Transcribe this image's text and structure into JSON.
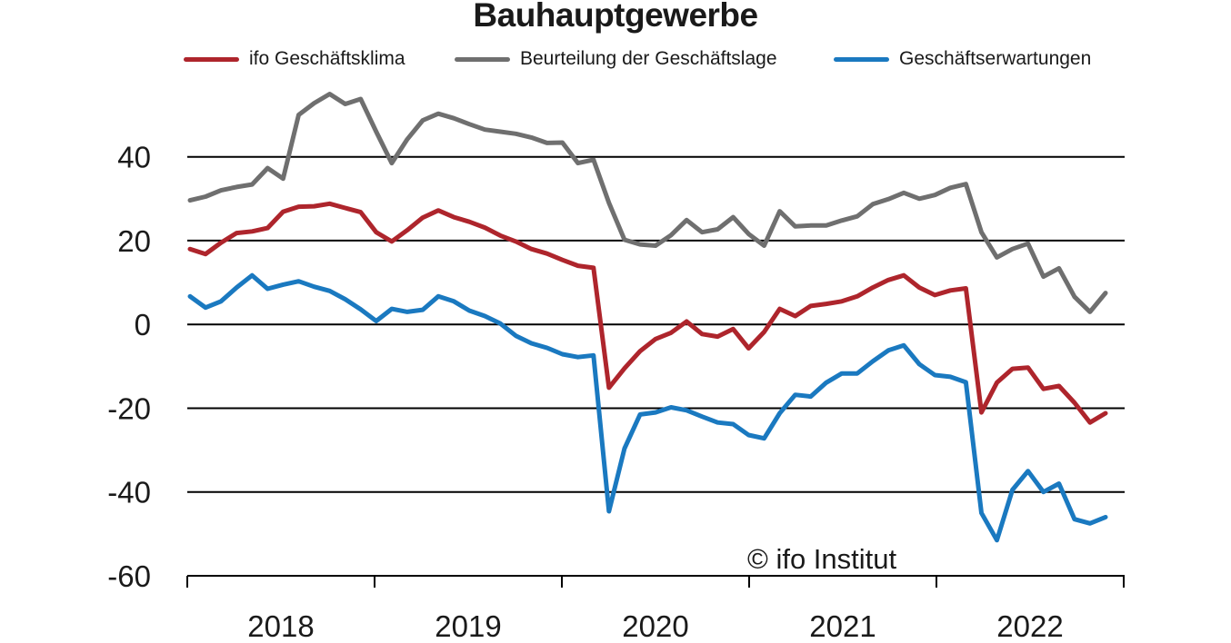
{
  "chart_data": {
    "type": "line",
    "title": "Bauhauptgewerbe",
    "watermark": "© ifo Institut",
    "xlabel": "",
    "ylabel": "",
    "ylim": [
      -60,
      60
    ],
    "yticks": [
      40,
      20,
      0,
      -20,
      -40,
      -60
    ],
    "grid": true,
    "legend_position": "top",
    "x_tick_year_labels": [
      "2018",
      "2019",
      "2020",
      "2021",
      "2022"
    ],
    "x": [
      "2018-01",
      "2018-02",
      "2018-03",
      "2018-04",
      "2018-05",
      "2018-06",
      "2018-07",
      "2018-08",
      "2018-09",
      "2018-10",
      "2018-11",
      "2018-12",
      "2019-01",
      "2019-02",
      "2019-03",
      "2019-04",
      "2019-05",
      "2019-06",
      "2019-07",
      "2019-08",
      "2019-09",
      "2019-10",
      "2019-11",
      "2019-12",
      "2020-01",
      "2020-02",
      "2020-03",
      "2020-04",
      "2020-05",
      "2020-06",
      "2020-07",
      "2020-08",
      "2020-09",
      "2020-10",
      "2020-11",
      "2020-12",
      "2021-01",
      "2021-02",
      "2021-03",
      "2021-04",
      "2021-05",
      "2021-06",
      "2021-07",
      "2021-08",
      "2021-09",
      "2021-10",
      "2021-11",
      "2021-12",
      "2022-01",
      "2022-02",
      "2022-03",
      "2022-04",
      "2022-05",
      "2022-06",
      "2022-07",
      "2022-08",
      "2022-09",
      "2022-10",
      "2022-11",
      "2022-12"
    ],
    "series": [
      {
        "name": "ifo Geschäftsklima",
        "color": "#ae252c",
        "values": [
          18.0,
          16.8,
          19.5,
          21.8,
          22.2,
          23.0,
          26.9,
          28.1,
          28.2,
          28.8,
          27.8,
          26.8,
          22.0,
          19.8,
          22.5,
          25.5,
          27.2,
          25.6,
          24.5,
          23.1,
          21.2,
          19.8,
          18.0,
          16.9,
          15.4,
          14.0,
          13.5,
          -15.1,
          -10.5,
          -6.4,
          -3.5,
          -2.0,
          0.7,
          -2.3,
          -2.9,
          -1.1,
          -5.7,
          -1.8,
          3.7,
          2.0,
          4.4,
          4.9,
          5.5,
          6.7,
          8.8,
          10.6,
          11.7,
          8.8,
          7.0,
          8.1,
          8.6,
          -21.0,
          -13.9,
          -10.6,
          -10.3,
          -15.4,
          -14.7,
          -18.7,
          -23.4,
          -21.2
        ]
      },
      {
        "name": "Beurteilung der Geschäftslage",
        "color": "#6f6f6f",
        "values": [
          29.6,
          30.5,
          32.0,
          32.8,
          33.4,
          37.3,
          34.8,
          50.0,
          52.8,
          55.0,
          52.6,
          53.8,
          46.0,
          38.5,
          44.2,
          48.7,
          50.3,
          49.2,
          47.8,
          46.5,
          46.0,
          45.5,
          44.6,
          43.3,
          43.4,
          38.5,
          39.3,
          29.0,
          20.2,
          19.1,
          18.8,
          21.3,
          24.9,
          22.0,
          22.7,
          25.6,
          21.6,
          18.8,
          27.0,
          23.4,
          23.6,
          23.6,
          24.8,
          25.8,
          28.7,
          29.9,
          31.4,
          30.0,
          30.9,
          32.6,
          33.5,
          22.0,
          16.0,
          18.0,
          19.3,
          11.4,
          13.4,
          6.6,
          3.0,
          7.5
        ]
      },
      {
        "name": "Geschäftserwartungen",
        "color": "#1a79c0",
        "values": [
          6.7,
          4.0,
          5.5,
          8.8,
          11.7,
          8.5,
          9.5,
          10.3,
          9.0,
          8.0,
          6.0,
          3.6,
          0.8,
          3.7,
          3.0,
          3.5,
          6.7,
          5.5,
          3.3,
          2.0,
          0.2,
          -2.7,
          -4.5,
          -5.6,
          -7.1,
          -7.8,
          -7.4,
          -44.6,
          -29.6,
          -21.5,
          -21.0,
          -19.8,
          -20.5,
          -22.0,
          -23.4,
          -23.8,
          -26.4,
          -27.2,
          -21.2,
          -16.8,
          -17.2,
          -13.9,
          -11.7,
          -11.7,
          -8.8,
          -6.2,
          -5.0,
          -9.5,
          -12.1,
          -12.5,
          -13.8,
          -45.0,
          -51.5,
          -39.5,
          -35.0,
          -40.0,
          -38.0,
          -46.5,
          -47.5,
          -46.0
        ]
      }
    ]
  }
}
